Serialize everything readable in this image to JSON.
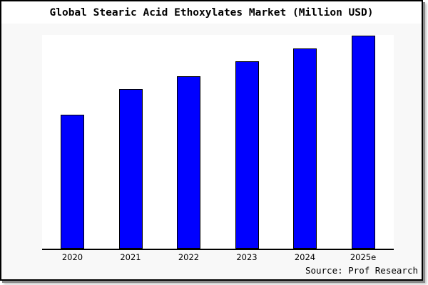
{
  "chart_data": {
    "type": "bar",
    "title": "Global Stearic Acid Ethoxylates Market (Million USD)",
    "source": "Source: Prof Research",
    "categories": [
      "2020",
      "2021",
      "2022",
      "2023",
      "2024",
      "2025e"
    ],
    "values": [
      63,
      75,
      81,
      88,
      94,
      100
    ],
    "value_units": "percent of tallest bar (y-axis not labeled in figure)",
    "xlabel": "",
    "ylabel": "",
    "ylim": [
      0,
      100
    ],
    "grid": false,
    "legend": "none",
    "y_axis_visible": false,
    "colors": {
      "bar_fill": "#0000ff",
      "bar_edge": "#000000",
      "plot_bg": "#ffffff",
      "figure_bg": "#f8f8f8",
      "title_bg": "#ffffff",
      "frame_border": "#000000"
    }
  }
}
